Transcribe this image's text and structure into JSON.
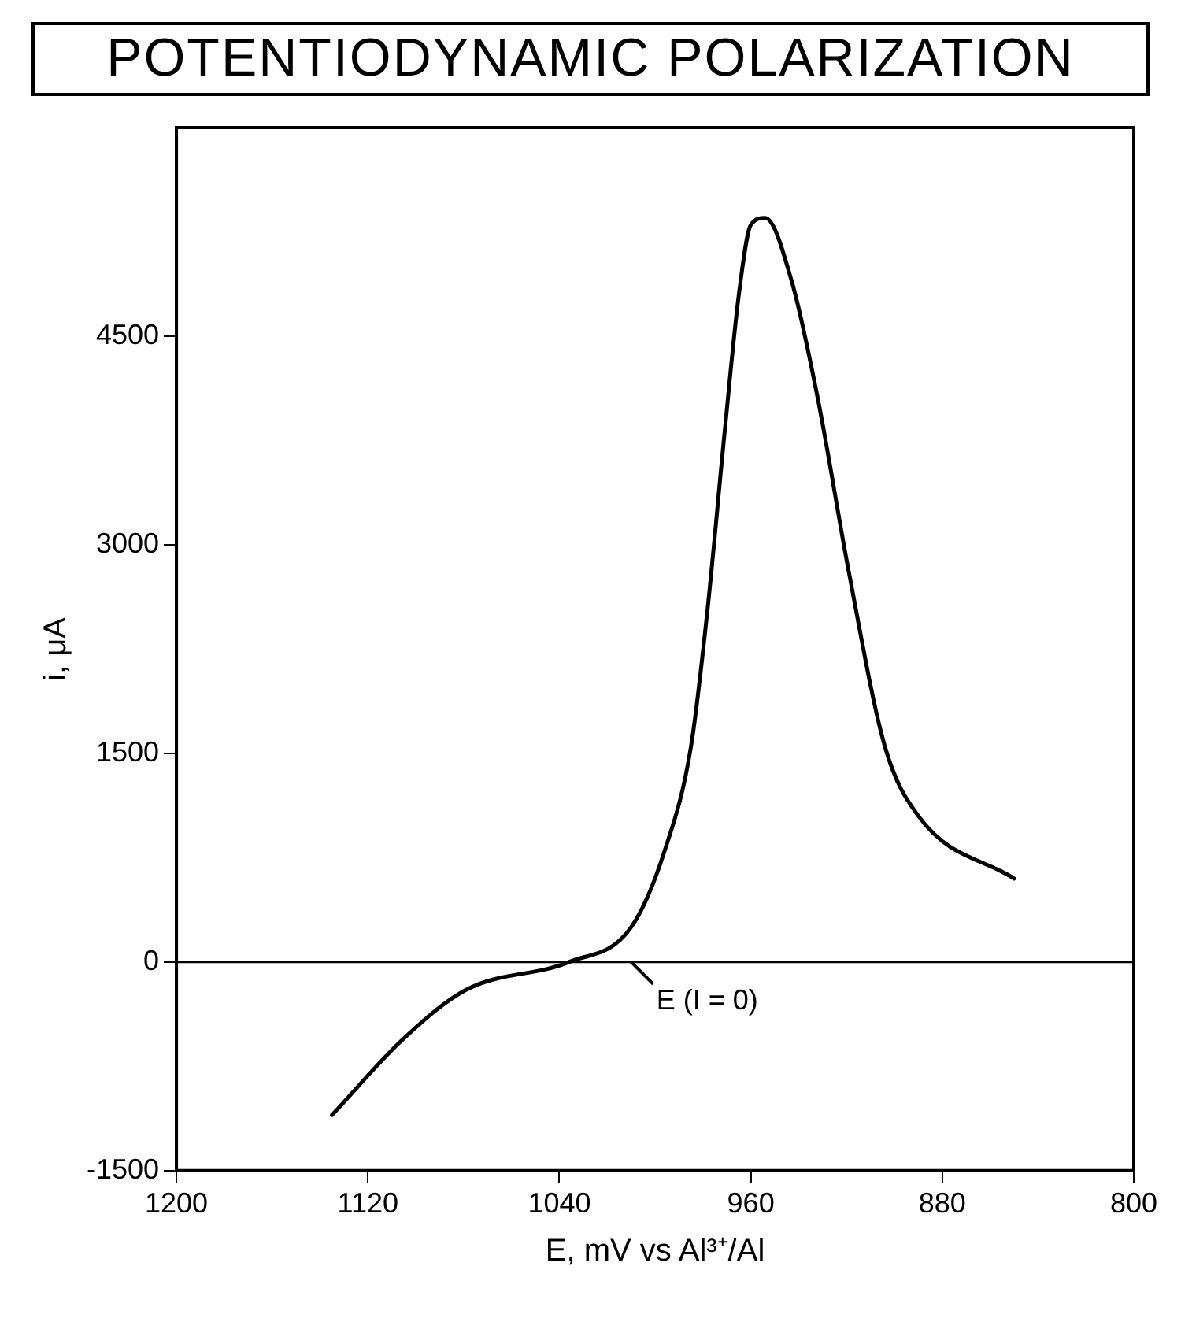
{
  "chart_data": {
    "type": "line",
    "title": "POTENTIODYNAMIC POLARIZATION",
    "xlabel": "E, mV vs Al³⁺/Al",
    "ylabel": "i, μA",
    "xlim": [
      1200,
      800
    ],
    "xticks": [
      1200,
      1120,
      1040,
      960,
      880,
      800
    ],
    "ylim": [
      -1500,
      6000
    ],
    "yticks": [
      -1500,
      0,
      1500,
      3000,
      4500
    ],
    "grid": false,
    "legend": false,
    "marker": "none",
    "line_style": "solid",
    "ref_lines": [
      {
        "axis": "y",
        "value": 0,
        "color": "#000000"
      }
    ],
    "annotations": [
      {
        "text": "E (I = 0)",
        "x": 1010,
        "y": 0
      }
    ],
    "series": [
      {
        "color": "#000000",
        "x": [
          850,
          890,
          904,
          919,
          932,
          943,
          954,
          960,
          965,
          971,
          978,
          985,
          996,
          1010,
          1036,
          1079,
          1105,
          1135
        ],
        "values": [
          600,
          1050,
          1550,
          2800,
          4050,
          4900,
          5350,
          5300,
          4800,
          3800,
          2550,
          1550,
          800,
          250,
          0,
          -200,
          -550,
          -1100
        ]
      }
    ]
  }
}
